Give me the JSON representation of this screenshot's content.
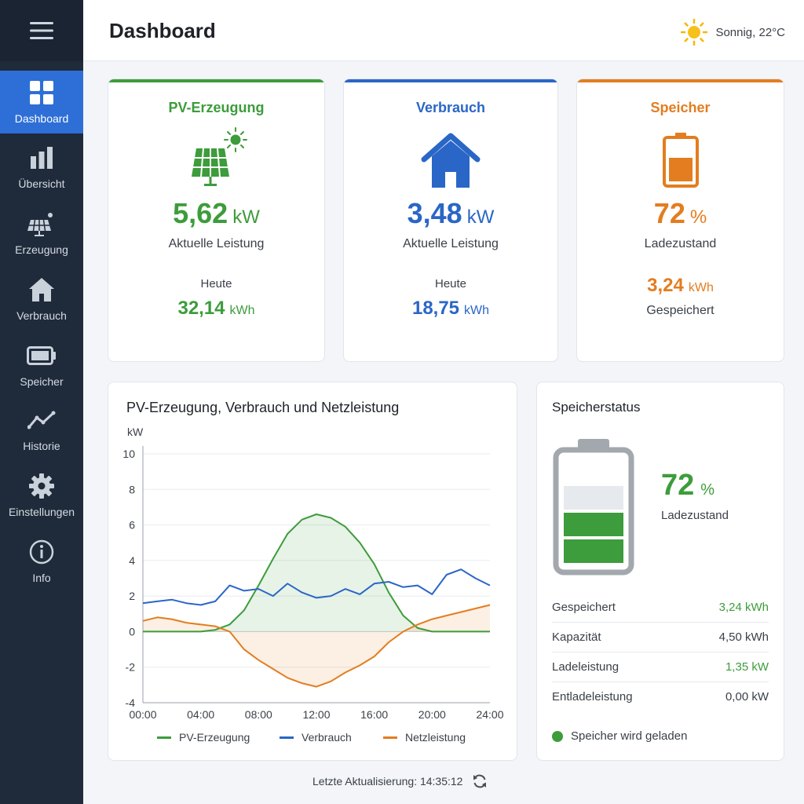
{
  "nav": {
    "items": [
      {
        "label": "Dashboard",
        "icon": "grid-icon"
      },
      {
        "label": "Übersicht",
        "icon": "bar-chart-icon"
      },
      {
        "label": "Erzeugung",
        "icon": "solar-panel-icon"
      },
      {
        "label": "Verbrauch",
        "icon": "home-icon"
      },
      {
        "label": "Speicher",
        "icon": "battery-icon"
      },
      {
        "label": "Historie",
        "icon": "trend-line-icon"
      },
      {
        "label": "Einstellungen",
        "icon": "gear-icon"
      },
      {
        "label": "Info",
        "icon": "info-icon"
      }
    ],
    "active": "Dashboard"
  },
  "header": {
    "title": "Dashboard",
    "weather": "Sonnig, 22°C"
  },
  "cards": {
    "pv": {
      "title": "PV-Erzeugung",
      "value": "5,62",
      "unit": "kW",
      "label": "Aktuelle Leistung",
      "today_label": "Heute",
      "today_value": "32,14",
      "today_unit": "kWh"
    },
    "consumption": {
      "title": "Verbrauch",
      "value": "3,48",
      "unit": "kW",
      "label": "Aktuelle Leistung",
      "today_label": "Heute",
      "today_value": "18,75",
      "today_unit": "kWh"
    },
    "storage": {
      "title": "Speicher",
      "value": "72",
      "unit": "%",
      "label": "Ladezustand",
      "stored_value": "3,24",
      "stored_unit": "kWh",
      "stored_label": "Gespeichert"
    }
  },
  "chart_data": {
    "type": "line",
    "title": "PV-Erzeugung, Verbrauch und Netzleistung",
    "ylabel": "kW",
    "xlabel": "",
    "ylim": [
      -4,
      10
    ],
    "yticks": [
      10,
      8,
      6,
      4,
      2,
      0,
      -2,
      -4
    ],
    "xticks": [
      "00:00",
      "04:00",
      "08:00",
      "12:00",
      "16:00",
      "20:00",
      "24:00"
    ],
    "x": [
      0,
      1,
      2,
      3,
      4,
      5,
      6,
      7,
      8,
      9,
      10,
      11,
      12,
      13,
      14,
      15,
      16,
      17,
      18,
      19,
      20,
      21,
      22,
      23,
      24
    ],
    "series": [
      {
        "name": "PV-Erzeugung",
        "color": "#3d9c3b",
        "fill": true,
        "values": [
          0,
          0,
          0,
          0,
          0,
          0.1,
          0.4,
          1.2,
          2.6,
          4.1,
          5.5,
          6.3,
          6.6,
          6.4,
          5.9,
          5.0,
          3.8,
          2.2,
          0.9,
          0.2,
          0,
          0,
          0,
          0,
          0
        ]
      },
      {
        "name": "Verbrauch",
        "color": "#2a66c7",
        "fill": false,
        "values": [
          1.6,
          1.7,
          1.8,
          1.6,
          1.5,
          1.7,
          2.6,
          2.3,
          2.4,
          2.0,
          2.7,
          2.2,
          1.9,
          2.0,
          2.4,
          2.1,
          2.7,
          2.8,
          2.5,
          2.6,
          2.1,
          3.2,
          3.5,
          3.0,
          2.6
        ]
      },
      {
        "name": "Netzleistung",
        "color": "#e37d1f",
        "fill": true,
        "values": [
          0.6,
          0.8,
          0.7,
          0.5,
          0.4,
          0.3,
          0.0,
          -1.0,
          -1.6,
          -2.1,
          -2.6,
          -2.9,
          -3.1,
          -2.8,
          -2.3,
          -1.9,
          -1.4,
          -0.6,
          0.0,
          0.4,
          0.7,
          0.9,
          1.1,
          1.3,
          1.5
        ]
      }
    ],
    "legend": "bottom"
  },
  "storage_status": {
    "title": "Speicherstatus",
    "percent": "72",
    "percent_unit": "%",
    "percent_label": "Ladezustand",
    "level_fraction": 0.72,
    "rows": [
      {
        "label": "Gespeichert",
        "value": "3,24 kWh",
        "color": "#3d9c3b"
      },
      {
        "label": "Kapazität",
        "value": "4,50 kWh",
        "color": "#3a3f47"
      },
      {
        "label": "Ladeleistung",
        "value": "1,35 kW",
        "color": "#3d9c3b"
      },
      {
        "label": "Entladeleistung",
        "value": "0,00 kW",
        "color": "#3a3f47"
      }
    ],
    "status_text": "Speicher wird geladen"
  },
  "footer": {
    "last_update": "Letzte Aktualisierung: 14:35:12"
  },
  "colors": {
    "pv": "#3d9c3b",
    "consumption": "#2a66c7",
    "storage": "#e37d1f",
    "sidebar": "#1f2b3a",
    "active": "#2d6fd6"
  }
}
